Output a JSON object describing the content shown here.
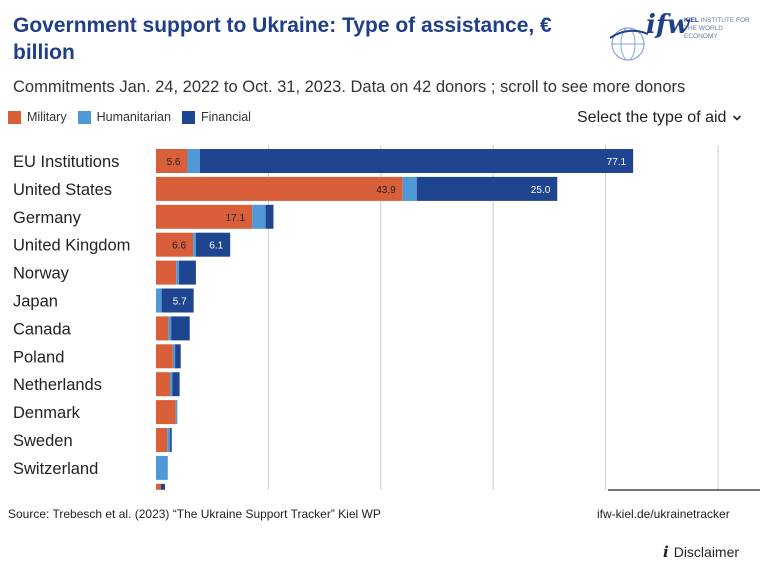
{
  "header": {
    "title": "Government support to Ukraine:  Type of assistance, € billion",
    "subtitle": "Commitments Jan. 24, 2022 to Oct. 31, 2023. Data on 42 donors ; scroll to see more donors",
    "select_label": "Select the type of aid"
  },
  "logo": {
    "mark": "ifw",
    "line1": "KIEL",
    "line2": "INSTITUTE FOR",
    "line3": "THE WORLD ECONOMY"
  },
  "colors": {
    "military": "#d95f3b",
    "humanitarian": "#4f9ad6",
    "financial": "#1f4590",
    "title": "#1f3f8a"
  },
  "chart_data": {
    "type": "bar",
    "orientation": "horizontal",
    "stacked": true,
    "categories": [
      "EU Institutions",
      "United States",
      "Germany",
      "United Kingdom",
      "Norway",
      "Japan",
      "Canada",
      "Poland",
      "Netherlands",
      "Denmark",
      "Sweden",
      "Switzerland"
    ],
    "series": [
      {
        "name": "Military",
        "color": "#d95f3b",
        "values": [
          5.6,
          43.9,
          17.1,
          6.6,
          3.6,
          0.0,
          2.2,
          3.0,
          2.5,
          3.5,
          2.0,
          0.0
        ]
      },
      {
        "name": "Humanitarian",
        "color": "#4f9ad6",
        "values": [
          2.2,
          2.5,
          2.4,
          0.5,
          0.5,
          1.0,
          0.5,
          0.4,
          0.4,
          0.3,
          0.5,
          2.1
        ]
      },
      {
        "name": "Financial",
        "color": "#1f4590",
        "values": [
          77.1,
          25.0,
          1.4,
          6.1,
          3.0,
          5.7,
          3.3,
          1.0,
          1.3,
          0.0,
          0.3,
          0.0
        ]
      }
    ],
    "data_labels": [
      [
        "5.6",
        "",
        "77.1"
      ],
      [
        "43.9",
        "",
        "25.0"
      ],
      [
        "17.1",
        "",
        ""
      ],
      [
        "6.6",
        "",
        "6.1"
      ],
      [
        "",
        "",
        ""
      ],
      [
        "",
        "",
        "5.7"
      ],
      [
        "",
        "",
        ""
      ],
      [
        "",
        "",
        ""
      ],
      [
        "",
        "",
        ""
      ],
      [
        "",
        "",
        ""
      ],
      [
        "",
        "",
        ""
      ],
      [
        "",
        "",
        ""
      ]
    ],
    "xlim": [
      0,
      105
    ],
    "grid": true,
    "gridlines_at": [
      20,
      40,
      60,
      80,
      100
    ],
    "legend": "top-left"
  },
  "footer": {
    "source": "Source: Trebesch et al. (2023) “The Ukraine Support Tracker” Kiel WP",
    "link": "ifw-kiel.de/ukrainetracker",
    "disclaimer": "Disclaimer",
    "info_icon": "i"
  }
}
